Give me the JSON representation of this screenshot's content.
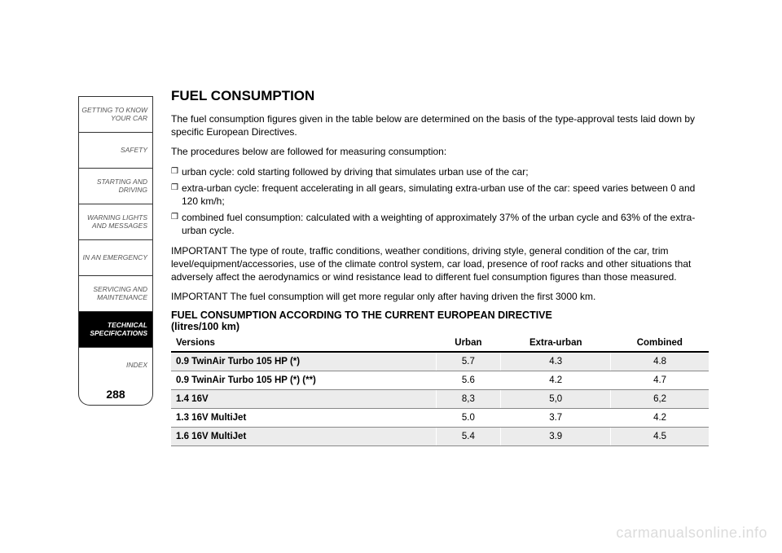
{
  "sidebar": {
    "tabs": [
      {
        "label": "GETTING TO KNOW\nYOUR CAR",
        "active": false
      },
      {
        "label": "SAFETY",
        "active": false
      },
      {
        "label": "STARTING AND\nDRIVING",
        "active": false
      },
      {
        "label": "WARNING LIGHTS\nAND MESSAGES",
        "active": false
      },
      {
        "label": "IN AN EMERGENCY",
        "active": false
      },
      {
        "label": "SERVICING AND\nMAINTENANCE",
        "active": false
      },
      {
        "label": "TECHNICAL\nSPECIFICATIONS",
        "active": true
      },
      {
        "label": "INDEX",
        "active": false
      }
    ],
    "page_number": "288"
  },
  "content": {
    "title": "FUEL CONSUMPTION",
    "p1": "The fuel consumption figures given in the table below are determined on the basis of the type-approval tests laid down by specific European Directives.",
    "p2": "The procedures below are followed for measuring consumption:",
    "bullets": [
      "urban cycle: cold starting followed by driving that simulates urban use of the car;",
      "extra-urban cycle: frequent accelerating in all gears, simulating extra-urban use of the car: speed varies between 0 and 120 km/h;",
      "combined fuel consumption: calculated with a weighting of approximately 37% of the urban cycle and 63% of the extra-urban cycle."
    ],
    "p3": "IMPORTANT The type of route, traffic conditions, weather conditions, driving style, general condition of the car, trim level/equipment/accessories, use of the climate control system, car load, presence of roof racks and other situations that adversely affect the aerodynamics or wind resistance lead to different fuel consumption figures than those measured.",
    "p4": "IMPORTANT The fuel consumption will get more regular only after having driven the first 3000 km.",
    "table_title_1": "FUEL CONSUMPTION ACCORDING TO THE CURRENT EUROPEAN DIRECTIVE",
    "table_title_2": "(litres/100 km)",
    "table": {
      "headers": [
        "Versions",
        "Urban",
        "Extra-urban",
        "Combined"
      ],
      "rows": [
        {
          "cells": [
            "0.9 TwinAir Turbo 105 HP (*)",
            "5.7",
            "4.3",
            "4.8"
          ],
          "shaded": true
        },
        {
          "cells": [
            "0.9 TwinAir Turbo 105 HP (*) (**)",
            "5.6",
            "4.2",
            "4.7"
          ],
          "shaded": false
        },
        {
          "cells": [
            "1.4 16V",
            "8,3",
            "5,0",
            "6,2"
          ],
          "shaded": true
        },
        {
          "cells": [
            "1.3 16V MultiJet",
            "5.0",
            "3.7",
            "4.2"
          ],
          "shaded": false
        },
        {
          "cells": [
            "1.6 16V MultiJet",
            "5.4",
            "3.9",
            "4.5"
          ],
          "shaded": true
        }
      ]
    }
  },
  "watermark": "carmanualsonline.info",
  "colors": {
    "shaded_row": "#ececec",
    "border_dark": "#000000",
    "border_light": "#888888",
    "watermark": "#dcdcdc"
  }
}
